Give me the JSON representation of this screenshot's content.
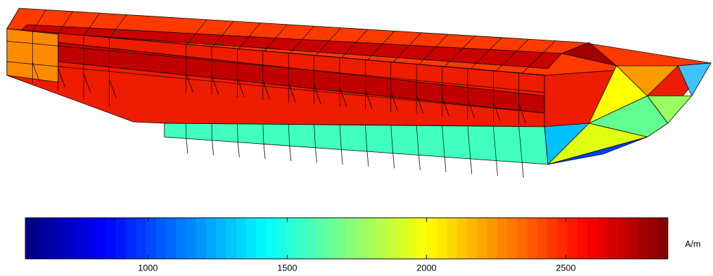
{
  "chart_data": {
    "type": "colorbar",
    "colormap": "jet",
    "levels": 64,
    "label": "A/m",
    "clim": [
      560,
      2866
    ],
    "ticks": [
      1000,
      1500,
      2000,
      2500
    ]
  }
}
